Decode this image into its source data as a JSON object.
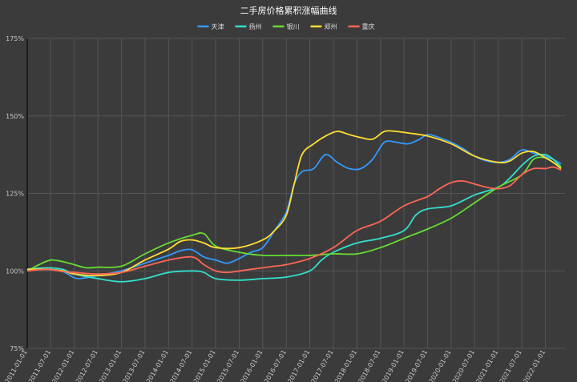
{
  "chart_data": {
    "type": "line",
    "title": "二手房价格累积涨幅曲线",
    "legend_position": "top",
    "grid": true,
    "ylim": [
      75,
      175
    ],
    "yticks": [
      75,
      100,
      125,
      150,
      175
    ],
    "ytick_labels": [
      "75%",
      "100%",
      "125%",
      "150%",
      "175%"
    ],
    "xticks": [
      "2011-01-01",
      "2011-07-01",
      "2012-01-01",
      "2012-07-01",
      "2013-01-01",
      "2013-07-01",
      "2014-01-01",
      "2014-07-01",
      "2015-01-01",
      "2015-07-01",
      "2016-01-01",
      "2016-07-01",
      "2017-01-01",
      "2017-07-01",
      "2018-01-01",
      "2018-07-01",
      "2019-01-01",
      "2019-07-01",
      "2020-01-01",
      "2020-07-01",
      "2021-01-01",
      "2021-07-01",
      "2022-01-01"
    ],
    "series": [
      {
        "name": "天津",
        "color": "#3399ff",
        "points": [
          [
            "2011-01",
            100.5
          ],
          [
            "2011-06",
            100.5
          ],
          [
            "2011-10",
            99.8
          ],
          [
            "2012-01",
            97.8
          ],
          [
            "2012-03",
            97.6
          ],
          [
            "2012-07",
            98.5
          ],
          [
            "2013-01",
            100.0
          ],
          [
            "2013-07",
            102.5
          ],
          [
            "2014-01",
            105.0
          ],
          [
            "2014-04",
            106.5
          ],
          [
            "2014-07",
            106.8
          ],
          [
            "2014-10",
            104.5
          ],
          [
            "2015-01",
            103.5
          ],
          [
            "2015-04",
            102.5
          ],
          [
            "2015-07",
            104.0
          ],
          [
            "2015-10",
            106.0
          ],
          [
            "2016-01",
            107.5
          ],
          [
            "2016-04",
            113.0
          ],
          [
            "2016-07",
            119.0
          ],
          [
            "2016-09",
            128.0
          ],
          [
            "2016-11",
            132.0
          ],
          [
            "2017-02",
            133.0
          ],
          [
            "2017-05",
            137.5
          ],
          [
            "2017-08",
            135.0
          ],
          [
            "2017-11",
            133.0
          ],
          [
            "2018-02",
            133.0
          ],
          [
            "2018-05",
            136.0
          ],
          [
            "2018-08",
            141.5
          ],
          [
            "2018-11",
            141.5
          ],
          [
            "2019-02",
            141.0
          ],
          [
            "2019-05",
            142.5
          ],
          [
            "2019-07",
            144.0
          ],
          [
            "2019-10",
            143.0
          ],
          [
            "2020-01",
            141.5
          ],
          [
            "2020-04",
            139.5
          ],
          [
            "2020-07",
            137.0
          ],
          [
            "2020-10",
            135.5
          ],
          [
            "2021-01",
            135.0
          ],
          [
            "2021-04",
            136.0
          ],
          [
            "2021-07",
            139.0
          ],
          [
            "2021-10",
            138.0
          ],
          [
            "2022-01",
            137.0
          ],
          [
            "2022-03",
            136.0
          ],
          [
            "2022-05",
            134.5
          ]
        ]
      },
      {
        "name": "扬州",
        "color": "#33e0cc",
        "points": [
          [
            "2011-01",
            100.5
          ],
          [
            "2011-06",
            101.0
          ],
          [
            "2011-10",
            100.5
          ],
          [
            "2012-01",
            99.0
          ],
          [
            "2012-07",
            97.5
          ],
          [
            "2013-01",
            96.5
          ],
          [
            "2013-07",
            97.5
          ],
          [
            "2014-01",
            99.5
          ],
          [
            "2014-07",
            100.0
          ],
          [
            "2014-10",
            99.5
          ],
          [
            "2015-01",
            97.5
          ],
          [
            "2015-07",
            97.0
          ],
          [
            "2016-01",
            97.5
          ],
          [
            "2016-07",
            98.0
          ],
          [
            "2017-01",
            100.0
          ],
          [
            "2017-04",
            103.5
          ],
          [
            "2017-07",
            106.0
          ],
          [
            "2018-01",
            109.0
          ],
          [
            "2018-07",
            110.5
          ],
          [
            "2019-01",
            113.0
          ],
          [
            "2019-04",
            118.0
          ],
          [
            "2019-07",
            120.0
          ],
          [
            "2020-01",
            121.0
          ],
          [
            "2020-07",
            124.5
          ],
          [
            "2021-01",
            127.0
          ],
          [
            "2021-04",
            130.0
          ],
          [
            "2021-07",
            134.0
          ],
          [
            "2021-10",
            137.0
          ],
          [
            "2022-01",
            137.5
          ],
          [
            "2022-03",
            136.0
          ],
          [
            "2022-05",
            133.5
          ]
        ]
      },
      {
        "name": "银川",
        "color": "#66dd33",
        "points": [
          [
            "2011-01",
            100.0
          ],
          [
            "2011-04",
            102.0
          ],
          [
            "2011-07",
            103.5
          ],
          [
            "2011-10",
            103.0
          ],
          [
            "2012-01",
            102.0
          ],
          [
            "2012-04",
            101.0
          ],
          [
            "2012-07",
            101.2
          ],
          [
            "2013-01",
            101.5
          ],
          [
            "2013-07",
            105.5
          ],
          [
            "2014-01",
            109.0
          ],
          [
            "2014-07",
            111.5
          ],
          [
            "2014-10",
            112.0
          ],
          [
            "2015-01",
            108.0
          ],
          [
            "2015-07",
            106.0
          ],
          [
            "2016-01",
            105.0
          ],
          [
            "2016-07",
            105.0
          ],
          [
            "2017-01",
            105.0
          ],
          [
            "2017-07",
            105.5
          ],
          [
            "2018-01",
            105.5
          ],
          [
            "2018-07",
            107.5
          ],
          [
            "2019-01",
            110.5
          ],
          [
            "2019-07",
            113.5
          ],
          [
            "2020-01",
            117.0
          ],
          [
            "2020-07",
            122.0
          ],
          [
            "2021-01",
            127.0
          ],
          [
            "2021-07",
            131.0
          ],
          [
            "2021-10",
            136.0
          ],
          [
            "2022-01",
            136.5
          ],
          [
            "2022-03",
            135.0
          ],
          [
            "2022-05",
            133.5
          ]
        ]
      },
      {
        "name": "郑州",
        "color": "#ffdd33",
        "points": [
          [
            "2011-01",
            100.5
          ],
          [
            "2011-06",
            100.5
          ],
          [
            "2011-10",
            100.0
          ],
          [
            "2012-01",
            99.0
          ],
          [
            "2012-07",
            98.5
          ],
          [
            "2013-01",
            99.5
          ],
          [
            "2013-07",
            103.5
          ],
          [
            "2014-01",
            107.0
          ],
          [
            "2014-04",
            109.5
          ],
          [
            "2014-07",
            110.0
          ],
          [
            "2014-10",
            109.0
          ],
          [
            "2015-01",
            107.5
          ],
          [
            "2015-07",
            107.5
          ],
          [
            "2016-01",
            110.0
          ],
          [
            "2016-04",
            113.0
          ],
          [
            "2016-07",
            118.0
          ],
          [
            "2016-09",
            128.0
          ],
          [
            "2016-11",
            137.5
          ],
          [
            "2017-02",
            141.0
          ],
          [
            "2017-05",
            143.5
          ],
          [
            "2017-08",
            145.0
          ],
          [
            "2017-11",
            144.0
          ],
          [
            "2018-02",
            143.0
          ],
          [
            "2018-05",
            142.5
          ],
          [
            "2018-08",
            145.0
          ],
          [
            "2018-11",
            145.0
          ],
          [
            "2019-02",
            144.5
          ],
          [
            "2019-07",
            143.5
          ],
          [
            "2020-01",
            141.0
          ],
          [
            "2020-07",
            137.0
          ],
          [
            "2021-01",
            135.0
          ],
          [
            "2021-04",
            135.5
          ],
          [
            "2021-07",
            138.0
          ],
          [
            "2021-10",
            138.5
          ],
          [
            "2022-01",
            136.5
          ],
          [
            "2022-03",
            135.0
          ],
          [
            "2022-05",
            133.0
          ]
        ]
      },
      {
        "name": "重庆",
        "color": "#ff6655",
        "points": [
          [
            "2011-01",
            100.0
          ],
          [
            "2011-06",
            100.5
          ],
          [
            "2011-10",
            99.8
          ],
          [
            "2012-01",
            99.5
          ],
          [
            "2012-07",
            99.0
          ],
          [
            "2013-01",
            99.5
          ],
          [
            "2013-07",
            101.5
          ],
          [
            "2014-01",
            103.5
          ],
          [
            "2014-07",
            104.5
          ],
          [
            "2014-10",
            102.0
          ],
          [
            "2015-01",
            100.0
          ],
          [
            "2015-04",
            99.5
          ],
          [
            "2015-07",
            100.0
          ],
          [
            "2016-01",
            101.0
          ],
          [
            "2016-04",
            101.5
          ],
          [
            "2016-07",
            102.0
          ],
          [
            "2017-01",
            104.0
          ],
          [
            "2017-07",
            107.5
          ],
          [
            "2018-01",
            113.0
          ],
          [
            "2018-07",
            116.0
          ],
          [
            "2019-01",
            121.0
          ],
          [
            "2019-07",
            124.0
          ],
          [
            "2019-10",
            126.5
          ],
          [
            "2020-01",
            128.5
          ],
          [
            "2020-04",
            129.0
          ],
          [
            "2020-07",
            128.0
          ],
          [
            "2020-10",
            127.0
          ],
          [
            "2021-01",
            126.5
          ],
          [
            "2021-04",
            127.5
          ],
          [
            "2021-07",
            131.0
          ],
          [
            "2021-10",
            133.0
          ],
          [
            "2022-01",
            133.0
          ],
          [
            "2022-03",
            133.5
          ],
          [
            "2022-05",
            132.5
          ]
        ]
      }
    ]
  }
}
